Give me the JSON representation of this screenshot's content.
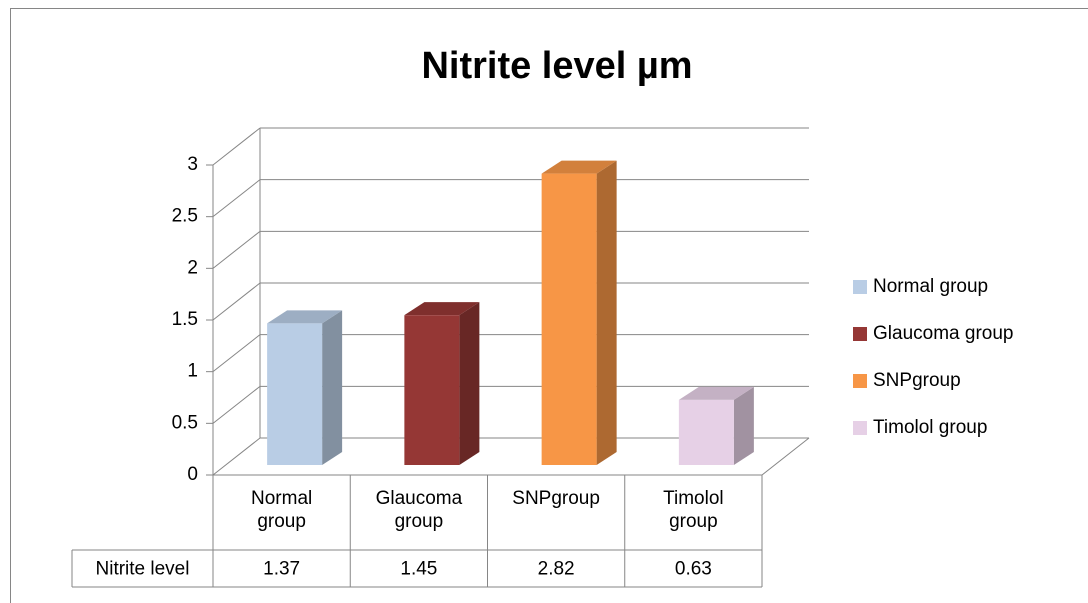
{
  "chart_data": {
    "type": "bar3d",
    "title": "Nitrite level µm",
    "categories": [
      "Normal group",
      "Glaucoma group",
      "SNPgroup",
      "Timolol group"
    ],
    "series": [
      {
        "name": "Nitrite level",
        "values": [
          1.37,
          1.45,
          2.82,
          0.63
        ]
      }
    ],
    "colors": [
      "#b9cde5",
      "#953735",
      "#f79646",
      "#e6d0e6"
    ],
    "ylim": [
      0,
      3
    ],
    "yticks": [
      0,
      0.5,
      1,
      1.5,
      2,
      2.5,
      3
    ],
    "grid": true,
    "legend": "right",
    "data_table": true
  }
}
